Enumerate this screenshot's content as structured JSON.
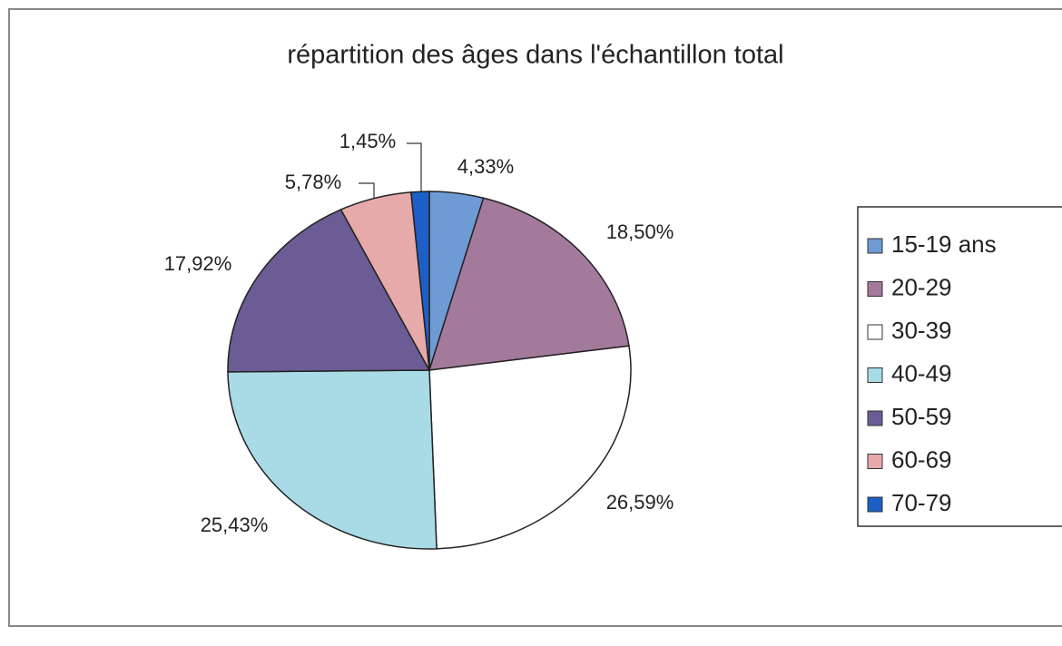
{
  "chart_data": {
    "type": "pie",
    "title": "répartition des âges dans l'échantillon total",
    "categories": [
      "15-19 ans",
      "20-29",
      "30-39",
      "40-49",
      "50-59",
      "60-69",
      "70-79"
    ],
    "values": [
      4.33,
      18.5,
      26.59,
      25.43,
      17.92,
      5.78,
      1.45
    ],
    "value_labels": [
      "4,33%",
      "18,50%",
      "26,59%",
      "25,43%",
      "17,92%",
      "5,78%",
      "1,45%"
    ],
    "colors": [
      "#6f9bd4",
      "#a47a9c",
      "#ffffff",
      "#a9dbe6",
      "#6b5c95",
      "#e6aaaa",
      "#1d5fc6"
    ],
    "legend": "right"
  }
}
